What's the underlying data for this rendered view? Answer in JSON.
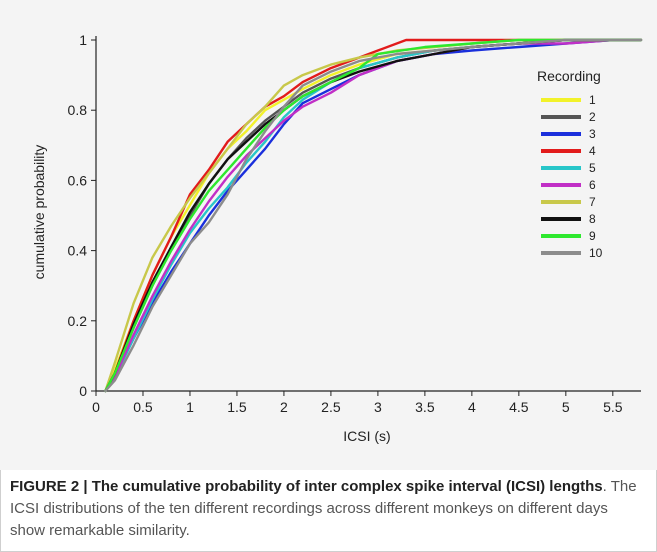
{
  "caption": {
    "label": "FIGURE 2 | The cumulative probability of inter complex spike interval (ICSI) lengths",
    "rest": ". The ICSI distributions of the ten different recordings across different monkeys on different days show remarkable similarity."
  },
  "chart_data": {
    "type": "line",
    "title": "",
    "xlabel": "ICSI (s)",
    "ylabel": "cumulative probability",
    "xlim": [
      0,
      5.8
    ],
    "ylim": [
      0,
      1
    ],
    "xticks": [
      "0",
      "0.5",
      "1",
      "1.5",
      "2",
      "2.5",
      "3",
      "3.5",
      "4",
      "4.5",
      "5",
      "5.5"
    ],
    "yticks": [
      "0",
      "0.2",
      "0.4",
      "0.6",
      "0.8",
      "1"
    ],
    "grid": false,
    "legend": {
      "title": "Recording",
      "position": "right"
    },
    "series": [
      {
        "name": "1",
        "color": "#f2f22a",
        "points": [
          [
            0.1,
            0.0
          ],
          [
            0.2,
            0.06
          ],
          [
            0.4,
            0.2
          ],
          [
            0.6,
            0.33
          ],
          [
            0.8,
            0.44
          ],
          [
            1.0,
            0.53
          ],
          [
            1.2,
            0.62
          ],
          [
            1.4,
            0.69
          ],
          [
            1.6,
            0.74
          ],
          [
            1.8,
            0.8
          ],
          [
            2.0,
            0.83
          ],
          [
            2.2,
            0.86
          ],
          [
            2.5,
            0.9
          ],
          [
            2.8,
            0.93
          ],
          [
            3.2,
            0.96
          ],
          [
            3.6,
            0.97
          ],
          [
            4.0,
            0.98
          ],
          [
            4.5,
            0.99
          ],
          [
            5.0,
            1.0
          ],
          [
            5.8,
            1.0
          ]
        ]
      },
      {
        "name": "2",
        "color": "#555555",
        "points": [
          [
            0.1,
            0.0
          ],
          [
            0.2,
            0.05
          ],
          [
            0.4,
            0.18
          ],
          [
            0.6,
            0.3
          ],
          [
            0.8,
            0.41
          ],
          [
            1.0,
            0.5
          ],
          [
            1.2,
            0.59
          ],
          [
            1.4,
            0.66
          ],
          [
            1.6,
            0.72
          ],
          [
            1.8,
            0.77
          ],
          [
            2.0,
            0.81
          ],
          [
            2.2,
            0.85
          ],
          [
            2.5,
            0.89
          ],
          [
            2.8,
            0.92
          ],
          [
            3.2,
            0.95
          ],
          [
            3.6,
            0.97
          ],
          [
            4.0,
            0.98
          ],
          [
            4.5,
            0.99
          ],
          [
            5.0,
            1.0
          ],
          [
            5.8,
            1.0
          ]
        ]
      },
      {
        "name": "3",
        "color": "#1a2fdc",
        "points": [
          [
            0.1,
            0.0
          ],
          [
            0.2,
            0.04
          ],
          [
            0.4,
            0.15
          ],
          [
            0.6,
            0.25
          ],
          [
            0.8,
            0.34
          ],
          [
            1.0,
            0.42
          ],
          [
            1.2,
            0.5
          ],
          [
            1.4,
            0.57
          ],
          [
            1.6,
            0.63
          ],
          [
            1.8,
            0.69
          ],
          [
            2.0,
            0.76
          ],
          [
            2.2,
            0.82
          ],
          [
            2.5,
            0.86
          ],
          [
            2.8,
            0.9
          ],
          [
            3.2,
            0.94
          ],
          [
            3.6,
            0.96
          ],
          [
            4.0,
            0.97
          ],
          [
            4.5,
            0.98
          ],
          [
            5.0,
            0.99
          ],
          [
            5.5,
            1.0
          ],
          [
            5.8,
            1.0
          ]
        ]
      },
      {
        "name": "4",
        "color": "#e21b1b",
        "points": [
          [
            0.1,
            0.0
          ],
          [
            0.2,
            0.05
          ],
          [
            0.4,
            0.2
          ],
          [
            0.6,
            0.33
          ],
          [
            0.8,
            0.44
          ],
          [
            1.0,
            0.56
          ],
          [
            1.2,
            0.63
          ],
          [
            1.4,
            0.71
          ],
          [
            1.6,
            0.76
          ],
          [
            1.8,
            0.81
          ],
          [
            2.0,
            0.84
          ],
          [
            2.2,
            0.88
          ],
          [
            2.5,
            0.92
          ],
          [
            2.8,
            0.95
          ],
          [
            3.0,
            0.97
          ],
          [
            3.3,
            1.0
          ],
          [
            3.8,
            1.0
          ],
          [
            5.8,
            1.0
          ]
        ]
      },
      {
        "name": "5",
        "color": "#28c6c9",
        "points": [
          [
            0.1,
            0.0
          ],
          [
            0.2,
            0.04
          ],
          [
            0.4,
            0.15
          ],
          [
            0.6,
            0.26
          ],
          [
            0.8,
            0.36
          ],
          [
            1.0,
            0.45
          ],
          [
            1.2,
            0.52
          ],
          [
            1.4,
            0.58
          ],
          [
            1.6,
            0.65
          ],
          [
            1.8,
            0.71
          ],
          [
            2.0,
            0.78
          ],
          [
            2.2,
            0.83
          ],
          [
            2.5,
            0.88
          ],
          [
            2.8,
            0.92
          ],
          [
            3.2,
            0.95
          ],
          [
            3.6,
            0.97
          ],
          [
            4.0,
            0.98
          ],
          [
            4.5,
            0.99
          ],
          [
            5.0,
            1.0
          ],
          [
            5.8,
            1.0
          ]
        ]
      },
      {
        "name": "6",
        "color": "#c12fc6",
        "points": [
          [
            0.1,
            0.0
          ],
          [
            0.2,
            0.04
          ],
          [
            0.4,
            0.16
          ],
          [
            0.6,
            0.27
          ],
          [
            0.8,
            0.37
          ],
          [
            1.0,
            0.46
          ],
          [
            1.2,
            0.54
          ],
          [
            1.4,
            0.61
          ],
          [
            1.6,
            0.67
          ],
          [
            1.8,
            0.72
          ],
          [
            2.0,
            0.77
          ],
          [
            2.2,
            0.81
          ],
          [
            2.5,
            0.85
          ],
          [
            2.8,
            0.9
          ],
          [
            3.2,
            0.94
          ],
          [
            3.6,
            0.96
          ],
          [
            4.0,
            0.98
          ],
          [
            4.5,
            0.99
          ],
          [
            5.0,
            0.99
          ],
          [
            5.5,
            1.0
          ],
          [
            5.8,
            1.0
          ]
        ]
      },
      {
        "name": "7",
        "color": "#c8c84a",
        "points": [
          [
            0.1,
            0.0
          ],
          [
            0.2,
            0.08
          ],
          [
            0.4,
            0.25
          ],
          [
            0.6,
            0.38
          ],
          [
            0.8,
            0.47
          ],
          [
            1.0,
            0.55
          ],
          [
            1.2,
            0.62
          ],
          [
            1.4,
            0.69
          ],
          [
            1.6,
            0.76
          ],
          [
            1.8,
            0.81
          ],
          [
            2.0,
            0.87
          ],
          [
            2.2,
            0.9
          ],
          [
            2.5,
            0.93
          ],
          [
            2.8,
            0.95
          ],
          [
            3.2,
            0.97
          ],
          [
            3.6,
            0.98
          ],
          [
            4.0,
            0.99
          ],
          [
            4.5,
            1.0
          ],
          [
            5.8,
            1.0
          ]
        ]
      },
      {
        "name": "8",
        "color": "#111111",
        "points": [
          [
            0.1,
            0.0
          ],
          [
            0.2,
            0.05
          ],
          [
            0.4,
            0.19
          ],
          [
            0.6,
            0.31
          ],
          [
            0.8,
            0.41
          ],
          [
            1.0,
            0.51
          ],
          [
            1.2,
            0.59
          ],
          [
            1.4,
            0.66
          ],
          [
            1.6,
            0.71
          ],
          [
            1.8,
            0.76
          ],
          [
            2.0,
            0.8
          ],
          [
            2.2,
            0.84
          ],
          [
            2.5,
            0.88
          ],
          [
            2.8,
            0.91
          ],
          [
            3.2,
            0.94
          ],
          [
            3.6,
            0.96
          ],
          [
            4.0,
            0.98
          ],
          [
            4.5,
            0.99
          ],
          [
            5.0,
            1.0
          ],
          [
            5.8,
            1.0
          ]
        ]
      },
      {
        "name": "9",
        "color": "#2ee82e",
        "points": [
          [
            0.1,
            0.0
          ],
          [
            0.2,
            0.05
          ],
          [
            0.4,
            0.18
          ],
          [
            0.6,
            0.3
          ],
          [
            0.8,
            0.4
          ],
          [
            1.0,
            0.49
          ],
          [
            1.2,
            0.57
          ],
          [
            1.4,
            0.63
          ],
          [
            1.6,
            0.69
          ],
          [
            1.8,
            0.75
          ],
          [
            2.0,
            0.8
          ],
          [
            2.2,
            0.84
          ],
          [
            2.5,
            0.88
          ],
          [
            2.8,
            0.92
          ],
          [
            3.0,
            0.96
          ],
          [
            3.5,
            0.98
          ],
          [
            4.0,
            0.99
          ],
          [
            4.5,
            1.0
          ],
          [
            5.8,
            1.0
          ]
        ]
      },
      {
        "name": "10",
        "color": "#8c8c8c",
        "points": [
          [
            0.1,
            0.0
          ],
          [
            0.2,
            0.03
          ],
          [
            0.4,
            0.13
          ],
          [
            0.6,
            0.24
          ],
          [
            0.8,
            0.33
          ],
          [
            1.0,
            0.42
          ],
          [
            1.2,
            0.48
          ],
          [
            1.4,
            0.56
          ],
          [
            1.6,
            0.66
          ],
          [
            1.8,
            0.74
          ],
          [
            2.0,
            0.81
          ],
          [
            2.2,
            0.87
          ],
          [
            2.5,
            0.91
          ],
          [
            2.8,
            0.94
          ],
          [
            3.2,
            0.96
          ],
          [
            3.6,
            0.97
          ],
          [
            4.0,
            0.98
          ],
          [
            4.5,
            0.99
          ],
          [
            5.0,
            1.0
          ],
          [
            5.8,
            1.0
          ]
        ]
      }
    ]
  }
}
